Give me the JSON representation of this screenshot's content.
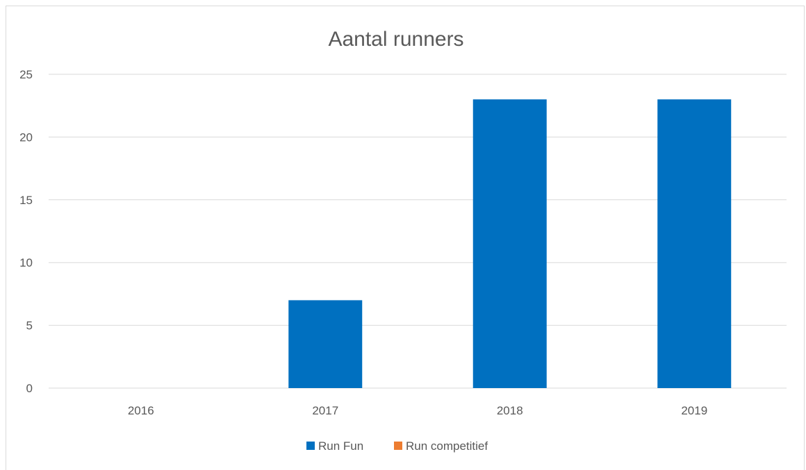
{
  "chart_data": {
    "type": "bar",
    "title": "Aantal runners",
    "xlabel": "",
    "ylabel": "",
    "categories": [
      "2016",
      "2017",
      "2018",
      "2019"
    ],
    "series": [
      {
        "name": "Run Fun",
        "values": [
          0,
          7,
          23,
          23
        ],
        "color": "#0070C0"
      },
      {
        "name": "Run competitief",
        "values": [
          0,
          0,
          0,
          0
        ],
        "color": "#ED7D31"
      }
    ],
    "ylim": [
      0,
      25
    ],
    "yticks": [
      0,
      5,
      10,
      15,
      20,
      25
    ],
    "grid": true,
    "legend_position": "bottom",
    "gridline_color": "#d9d9d9",
    "text_color": "#595959"
  }
}
